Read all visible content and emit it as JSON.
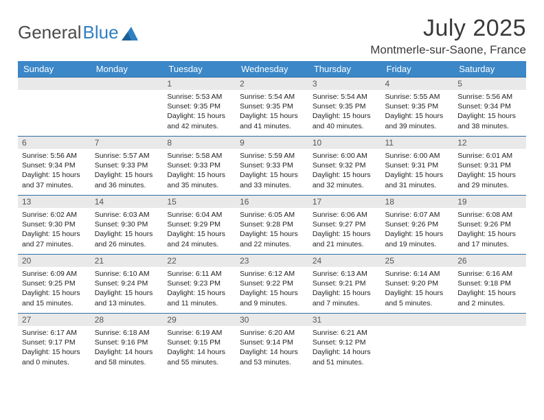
{
  "brand": {
    "text1": "General",
    "text2": "Blue"
  },
  "title": "July 2025",
  "location": "Montmerle-sur-Saone, France",
  "colors": {
    "header_bg": "#3b87c8",
    "header_fg": "#ffffff",
    "row_divider": "#2e6ca3",
    "daynum_bg": "#e9e9e9",
    "logo_gray": "#4a4a4a",
    "logo_blue": "#2f7fc2"
  },
  "weekdays": [
    "Sunday",
    "Monday",
    "Tuesday",
    "Wednesday",
    "Thursday",
    "Friday",
    "Saturday"
  ],
  "weeks": [
    [
      null,
      null,
      {
        "n": "1",
        "rise": "5:53 AM",
        "set": "9:35 PM",
        "h": "15",
        "m": "42"
      },
      {
        "n": "2",
        "rise": "5:54 AM",
        "set": "9:35 PM",
        "h": "15",
        "m": "41"
      },
      {
        "n": "3",
        "rise": "5:54 AM",
        "set": "9:35 PM",
        "h": "15",
        "m": "40"
      },
      {
        "n": "4",
        "rise": "5:55 AM",
        "set": "9:35 PM",
        "h": "15",
        "m": "39"
      },
      {
        "n": "5",
        "rise": "5:56 AM",
        "set": "9:34 PM",
        "h": "15",
        "m": "38"
      }
    ],
    [
      {
        "n": "6",
        "rise": "5:56 AM",
        "set": "9:34 PM",
        "h": "15",
        "m": "37"
      },
      {
        "n": "7",
        "rise": "5:57 AM",
        "set": "9:33 PM",
        "h": "15",
        "m": "36"
      },
      {
        "n": "8",
        "rise": "5:58 AM",
        "set": "9:33 PM",
        "h": "15",
        "m": "35"
      },
      {
        "n": "9",
        "rise": "5:59 AM",
        "set": "9:33 PM",
        "h": "15",
        "m": "33"
      },
      {
        "n": "10",
        "rise": "6:00 AM",
        "set": "9:32 PM",
        "h": "15",
        "m": "32"
      },
      {
        "n": "11",
        "rise": "6:00 AM",
        "set": "9:31 PM",
        "h": "15",
        "m": "31"
      },
      {
        "n": "12",
        "rise": "6:01 AM",
        "set": "9:31 PM",
        "h": "15",
        "m": "29"
      }
    ],
    [
      {
        "n": "13",
        "rise": "6:02 AM",
        "set": "9:30 PM",
        "h": "15",
        "m": "27"
      },
      {
        "n": "14",
        "rise": "6:03 AM",
        "set": "9:30 PM",
        "h": "15",
        "m": "26"
      },
      {
        "n": "15",
        "rise": "6:04 AM",
        "set": "9:29 PM",
        "h": "15",
        "m": "24"
      },
      {
        "n": "16",
        "rise": "6:05 AM",
        "set": "9:28 PM",
        "h": "15",
        "m": "22"
      },
      {
        "n": "17",
        "rise": "6:06 AM",
        "set": "9:27 PM",
        "h": "15",
        "m": "21"
      },
      {
        "n": "18",
        "rise": "6:07 AM",
        "set": "9:26 PM",
        "h": "15",
        "m": "19"
      },
      {
        "n": "19",
        "rise": "6:08 AM",
        "set": "9:26 PM",
        "h": "15",
        "m": "17"
      }
    ],
    [
      {
        "n": "20",
        "rise": "6:09 AM",
        "set": "9:25 PM",
        "h": "15",
        "m": "15"
      },
      {
        "n": "21",
        "rise": "6:10 AM",
        "set": "9:24 PM",
        "h": "15",
        "m": "13"
      },
      {
        "n": "22",
        "rise": "6:11 AM",
        "set": "9:23 PM",
        "h": "15",
        "m": "11"
      },
      {
        "n": "23",
        "rise": "6:12 AM",
        "set": "9:22 PM",
        "h": "15",
        "m": "9"
      },
      {
        "n": "24",
        "rise": "6:13 AM",
        "set": "9:21 PM",
        "h": "15",
        "m": "7"
      },
      {
        "n": "25",
        "rise": "6:14 AM",
        "set": "9:20 PM",
        "h": "15",
        "m": "5"
      },
      {
        "n": "26",
        "rise": "6:16 AM",
        "set": "9:18 PM",
        "h": "15",
        "m": "2"
      }
    ],
    [
      {
        "n": "27",
        "rise": "6:17 AM",
        "set": "9:17 PM",
        "h": "15",
        "m": "0"
      },
      {
        "n": "28",
        "rise": "6:18 AM",
        "set": "9:16 PM",
        "h": "14",
        "m": "58"
      },
      {
        "n": "29",
        "rise": "6:19 AM",
        "set": "9:15 PM",
        "h": "14",
        "m": "55"
      },
      {
        "n": "30",
        "rise": "6:20 AM",
        "set": "9:14 PM",
        "h": "14",
        "m": "53"
      },
      {
        "n": "31",
        "rise": "6:21 AM",
        "set": "9:12 PM",
        "h": "14",
        "m": "51"
      },
      null,
      null
    ]
  ]
}
